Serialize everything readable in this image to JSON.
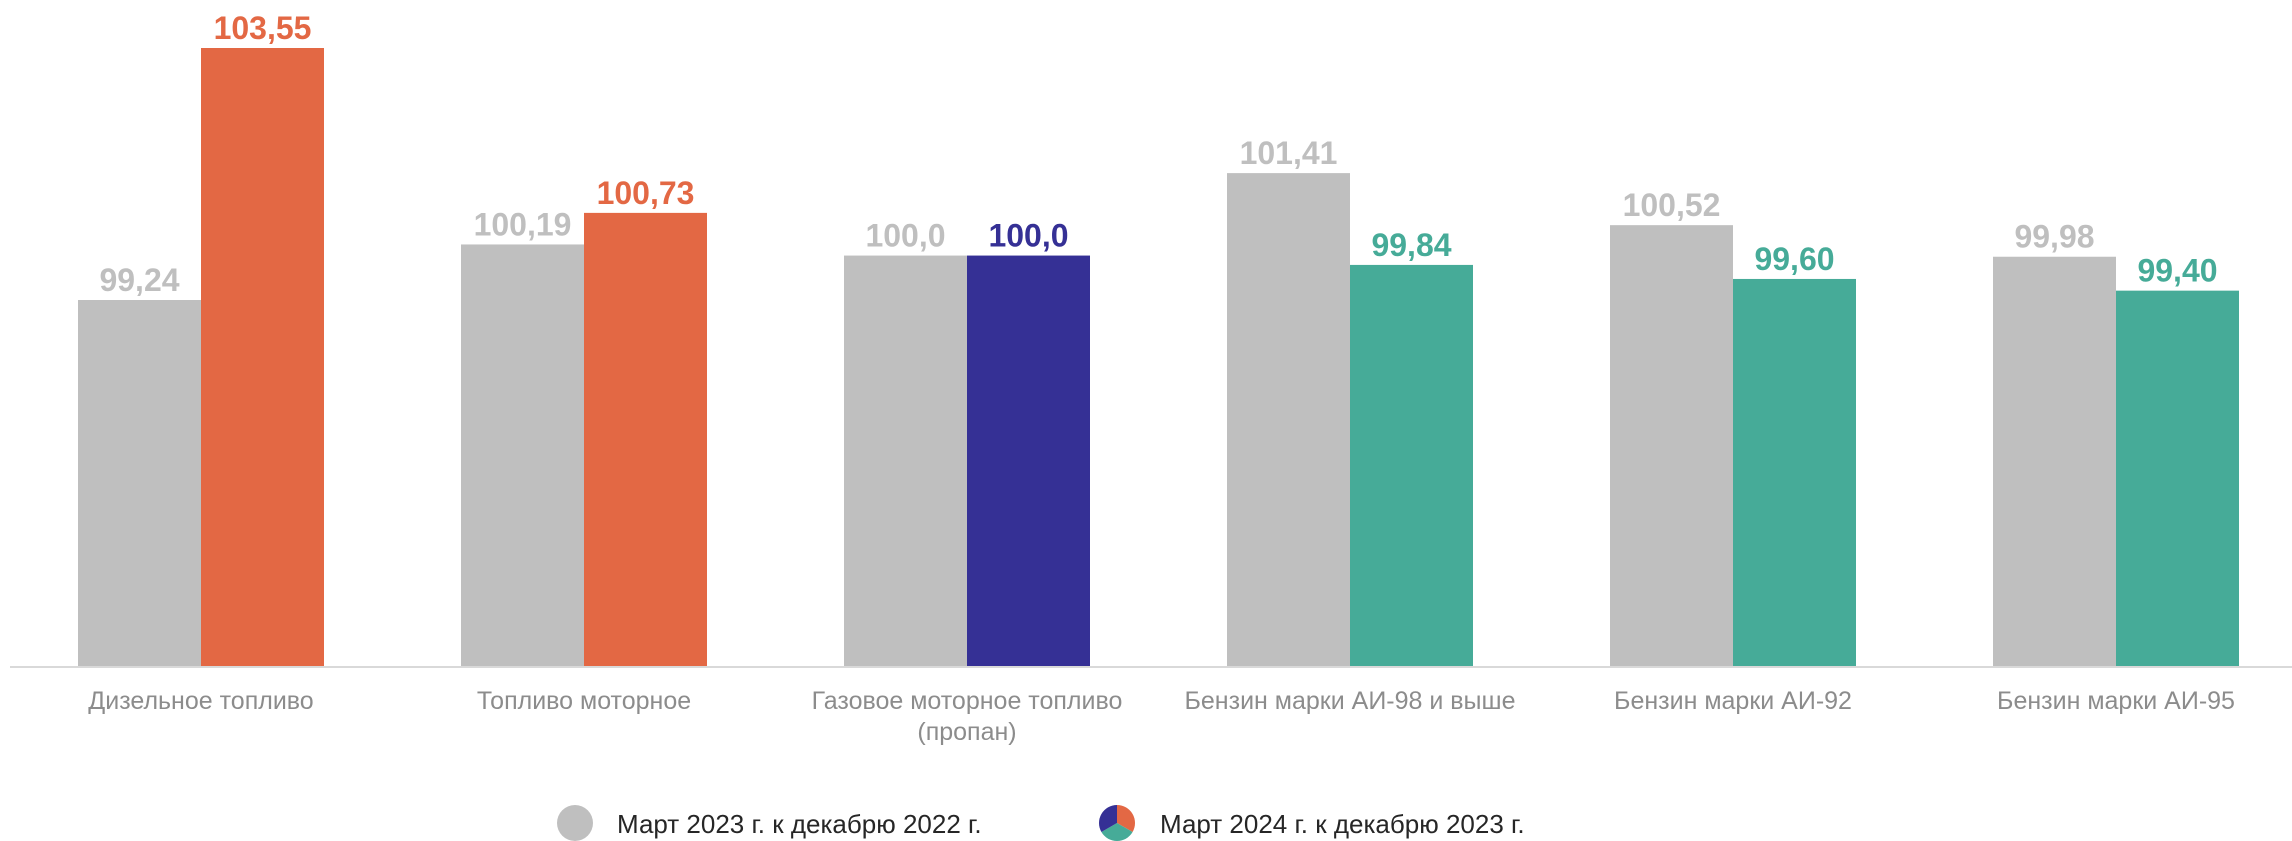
{
  "chart_data": {
    "type": "bar",
    "categories": [
      [
        "Дизельное топливо"
      ],
      [
        "Топливо моторное"
      ],
      [
        "Газовое моторное топливо",
        "(пропан)"
      ],
      [
        "Бензин марки АИ-98 и выше"
      ],
      [
        "Бензин марки АИ-92"
      ],
      [
        "Бензин марки АИ-95"
      ]
    ],
    "series": [
      {
        "name": "Март 2023 г. к декабрю 2022 г.",
        "values": [
          99.24,
          100.19,
          100.0,
          101.41,
          100.52,
          99.98
        ],
        "labels": [
          "99,24",
          "100,19",
          "100,0",
          "101,41",
          "100,52",
          "99,98"
        ],
        "color": "#bfbfbf"
      },
      {
        "name": "Март 2024 г. к декабрю 2023 г.",
        "values": [
          103.55,
          100.73,
          100.0,
          99.84,
          99.6,
          99.4
        ],
        "labels": [
          "103,55",
          "100,73",
          "100,0",
          "99,84",
          "99,60",
          "99,40"
        ],
        "colors": [
          "#e36844",
          "#e36844",
          "#353095",
          "#46ab98",
          "#46ab98",
          "#46ab98"
        ]
      }
    ],
    "legend_placement": "bottom-center",
    "legend_icon_colors": [
      "#bfbfbf",
      "#353095",
      "#e36844",
      "#46ab98"
    ],
    "grid": false,
    "title": "",
    "xlabel": "",
    "ylabel": ""
  }
}
